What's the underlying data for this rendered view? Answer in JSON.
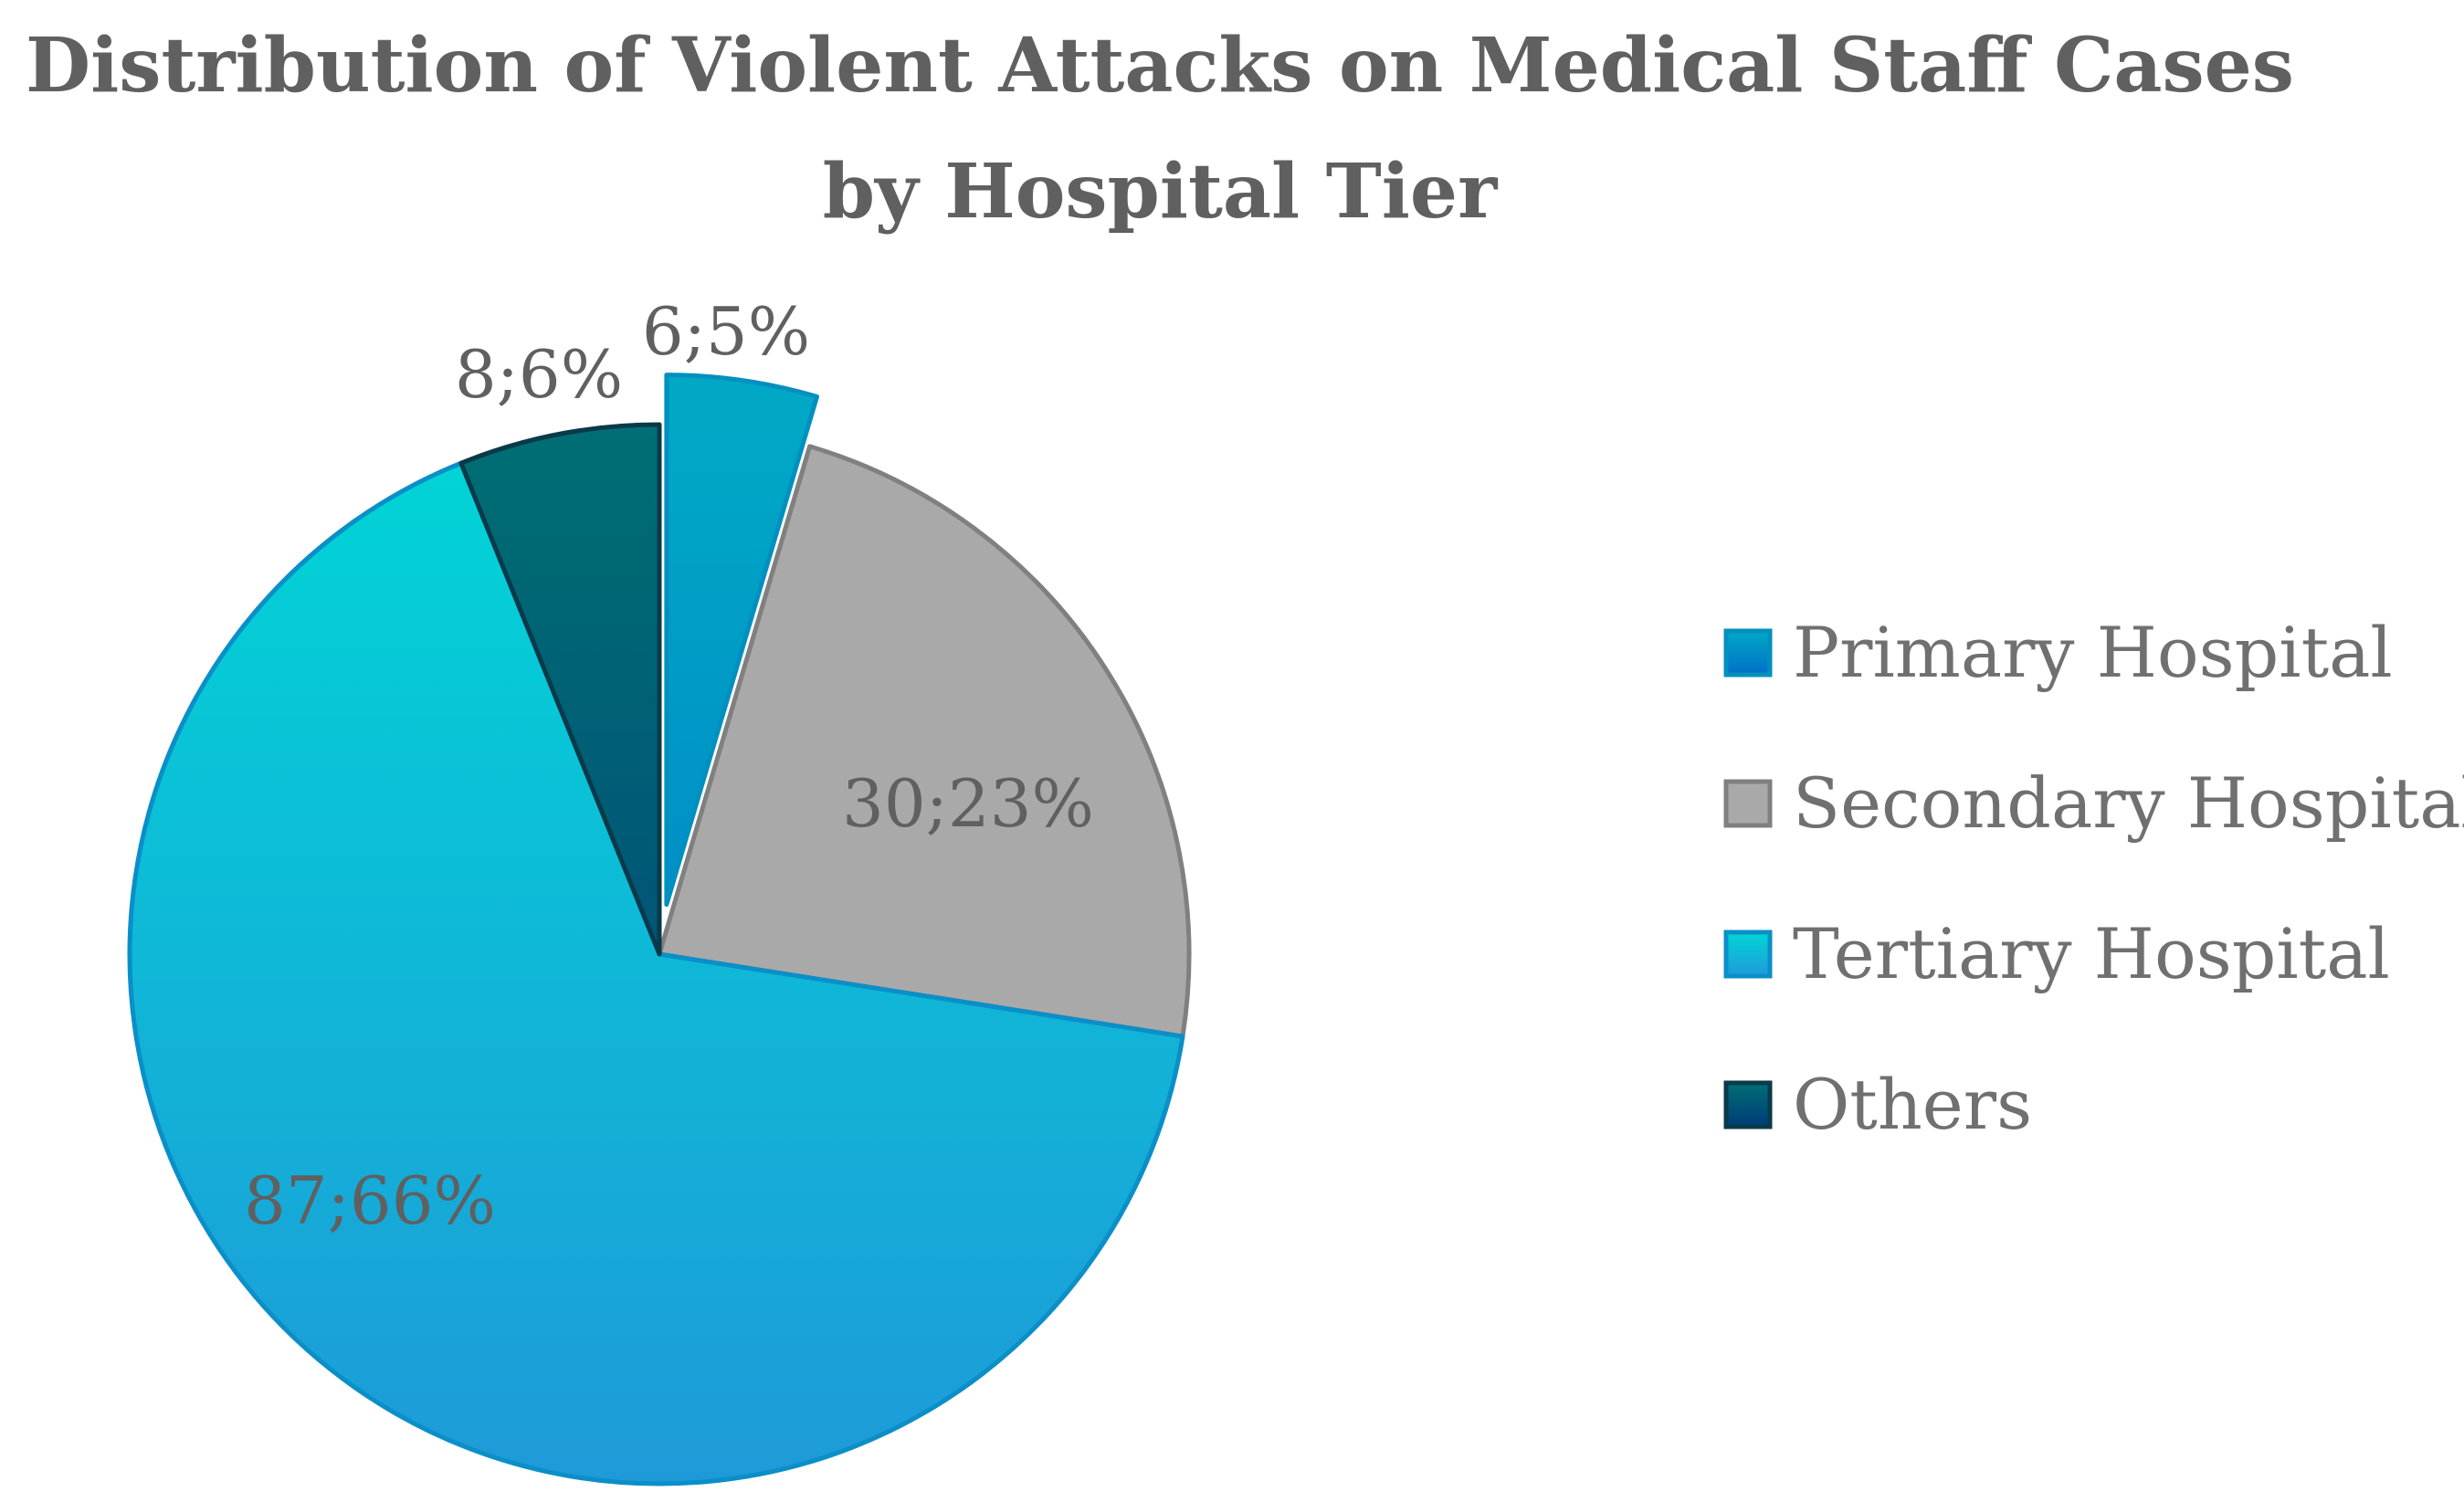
{
  "chart_data": {
    "type": "pie",
    "title_line1": "Distribution of Violent Attacks on Medical Staff Cases",
    "title_line2": "by Hospital Tier",
    "slices": [
      {
        "name": "Primary Hospital",
        "value": 6,
        "label": "6;5%",
        "color_top": "#00a8c6",
        "color_bottom": "#0070c8",
        "stroke": "#0090c0",
        "exploded": true
      },
      {
        "name": "Secondary Hospital",
        "value": 30,
        "label": "30;23%",
        "color_top": "#a9a9a9",
        "color_bottom": "#a9a9a9",
        "stroke": "#808080",
        "exploded": false
      },
      {
        "name": "Tertiary Hospital",
        "value": 87,
        "label": "87;66%",
        "color_top": "#00d6d6",
        "color_bottom": "#1e9ad8",
        "stroke": "#0a8fc8",
        "exploded": false
      },
      {
        "name": "Others",
        "value": 8,
        "label": "8;6%",
        "color_top": "#006e74",
        "color_bottom": "#003c78",
        "stroke": "#0a3a4a",
        "exploded": false
      }
    ],
    "start_angle_deg": 0,
    "direction": "clockwise",
    "legend_position": "right"
  }
}
